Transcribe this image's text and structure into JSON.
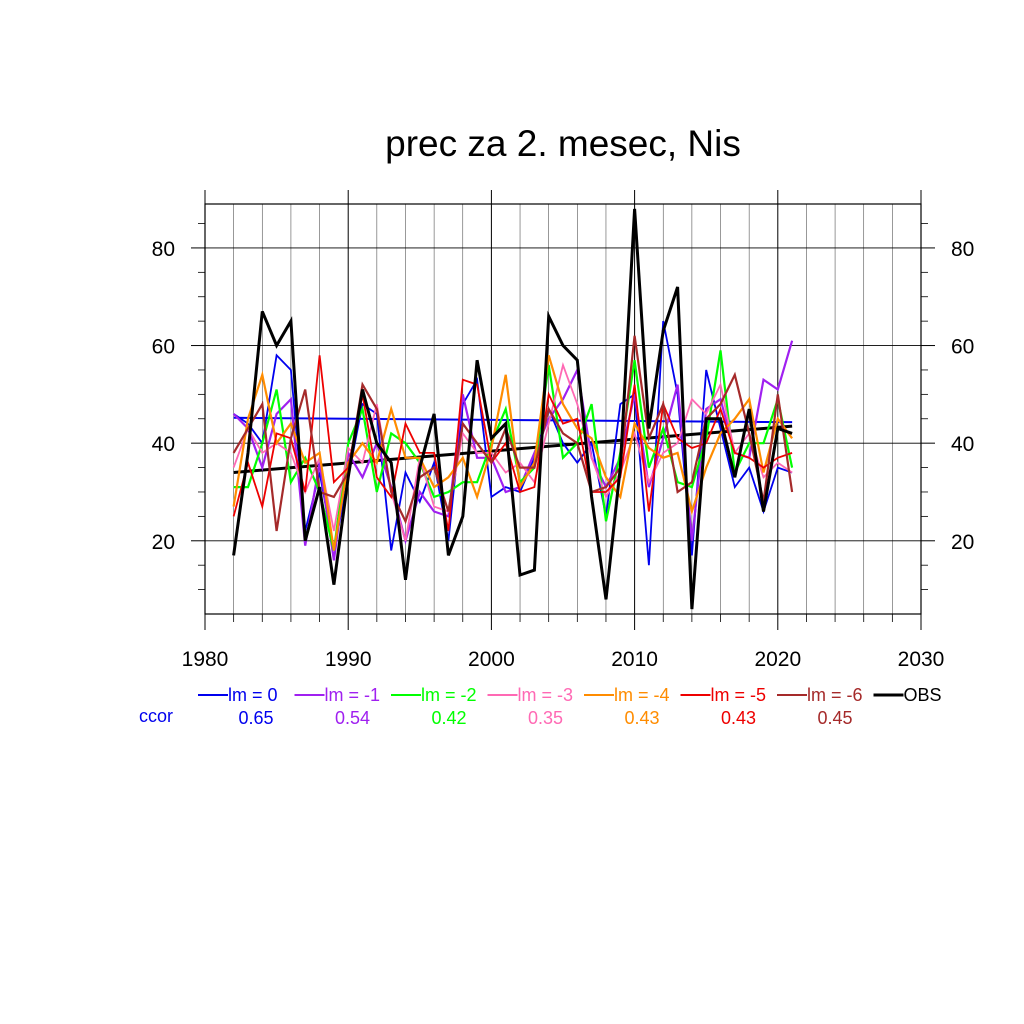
{
  "chart_data": {
    "type": "line",
    "title": "prec za 2. mesec, Nis",
    "xlabel": "",
    "ylabel": "",
    "xlim": [
      1980,
      2030
    ],
    "ylim": [
      5,
      89
    ],
    "x_ticks": [
      1980,
      1990,
      2000,
      2010,
      2020,
      2030
    ],
    "y_ticks": [
      20,
      40,
      60,
      80
    ],
    "grid": true,
    "legend_position": "bottom",
    "ccor_label": "ccor",
    "x": [
      1982,
      1983,
      1984,
      1985,
      1986,
      1987,
      1988,
      1989,
      1990,
      1991,
      1992,
      1993,
      1994,
      1995,
      1996,
      1997,
      1998,
      1999,
      2000,
      2001,
      2002,
      2003,
      2004,
      2005,
      2006,
      2007,
      2008,
      2009,
      2010,
      2011,
      2012,
      2013,
      2014,
      2015,
      2016,
      2017,
      2018,
      2019,
      2020,
      2021
    ],
    "series": [
      {
        "name": "lm = 0",
        "ccor": "0.65",
        "color": "#0000ee",
        "width": 1.8,
        "values": [
          46,
          44,
          40,
          58,
          55,
          22,
          34,
          18,
          33,
          48,
          46,
          18,
          34,
          28,
          36,
          20,
          48,
          53,
          29,
          31,
          30,
          37,
          47,
          40,
          36,
          40,
          25,
          48,
          50,
          15,
          65,
          50,
          17,
          55,
          43,
          31,
          35,
          26,
          35,
          34
        ]
      },
      {
        "name": "lm = -1",
        "ccor": "0.54",
        "color": "#a020f0",
        "width": 2.2,
        "values": [
          46,
          43,
          35,
          46,
          49,
          19,
          36,
          16,
          38,
          33,
          40,
          31,
          20,
          30,
          26,
          25,
          50,
          37,
          37,
          30,
          31,
          38,
          45,
          49,
          55,
          37,
          31,
          37,
          50,
          31,
          41,
          52,
          20,
          47,
          49,
          38,
          37,
          53,
          51,
          61
        ]
      },
      {
        "name": "lm = -2",
        "ccor": "0.42",
        "color": "#00ff00",
        "width": 2.2,
        "values": [
          31,
          31,
          40,
          51,
          32,
          37,
          30,
          18,
          40,
          47,
          30,
          42,
          40,
          36,
          29,
          30,
          32,
          32,
          40,
          47,
          32,
          35,
          56,
          37,
          40,
          48,
          24,
          38,
          57,
          35,
          43,
          32,
          31,
          41,
          59,
          34,
          40,
          40,
          49,
          35
        ]
      },
      {
        "name": "lm = -3",
        "ccor": "0.35",
        "color": "#ff69b4",
        "width": 1.8,
        "values": [
          35,
          43,
          38,
          40,
          38,
          30,
          37,
          22,
          39,
          36,
          48,
          30,
          20,
          37,
          27,
          26,
          42,
          38,
          38,
          34,
          36,
          32,
          44,
          56,
          48,
          37,
          29,
          34,
          42,
          32,
          38,
          40,
          49,
          46,
          52,
          38,
          42,
          33,
          36,
          34
        ]
      },
      {
        "name": "lm = -4",
        "ccor": "0.43",
        "color": "#ff8c00",
        "width": 2.2,
        "values": [
          27,
          45,
          54,
          40,
          44,
          36,
          38,
          18,
          36,
          40,
          36,
          47,
          37,
          37,
          31,
          33,
          37,
          29,
          39,
          54,
          31,
          36,
          58,
          48,
          43,
          41,
          33,
          29,
          44,
          39,
          37,
          38,
          26,
          35,
          42,
          45,
          49,
          34,
          45,
          41
        ]
      },
      {
        "name": "lm = -5",
        "ccor": "0.43",
        "color": "#ee0000",
        "width": 1.8,
        "values": [
          25,
          36,
          27,
          42,
          41,
          30,
          58,
          32,
          35,
          50,
          33,
          29,
          44,
          38,
          38,
          22,
          53,
          52,
          36,
          40,
          30,
          31,
          50,
          44,
          45,
          30,
          30,
          33,
          52,
          26,
          48,
          41,
          39,
          40,
          47,
          38,
          37,
          35,
          37,
          38
        ]
      },
      {
        "name": "lm = -6",
        "ccor": "0.45",
        "color": "#a52a2a",
        "width": 2.2,
        "values": [
          38,
          43,
          48,
          22,
          41,
          51,
          30,
          29,
          34,
          52,
          47,
          30,
          24,
          33,
          35,
          26,
          44,
          40,
          36,
          43,
          35,
          35,
          47,
          42,
          40,
          30,
          31,
          35,
          62,
          41,
          48,
          30,
          32,
          45,
          48,
          54,
          42,
          28,
          50,
          30
        ]
      },
      {
        "name": "OBS",
        "ccor": "",
        "color": "#000000",
        "width": 3.0,
        "values": [
          17,
          38,
          67,
          60,
          65,
          20,
          31,
          11,
          33,
          51,
          40,
          36,
          12,
          35,
          46,
          17,
          25,
          57,
          41,
          44,
          13,
          14,
          66,
          60,
          57,
          29,
          8,
          35,
          88,
          43,
          63,
          72,
          6,
          45,
          45,
          33,
          47,
          26,
          43,
          42
        ]
      }
    ],
    "trend_lines": [
      {
        "of": "lm = 0",
        "color": "#0000ee",
        "x": [
          1982,
          2021
        ],
        "y": [
          45.2,
          44.3
        ]
      },
      {
        "of": "OBS",
        "color": "#000000",
        "x": [
          1982,
          2021
        ],
        "y": [
          34.0,
          43.5
        ]
      }
    ]
  }
}
